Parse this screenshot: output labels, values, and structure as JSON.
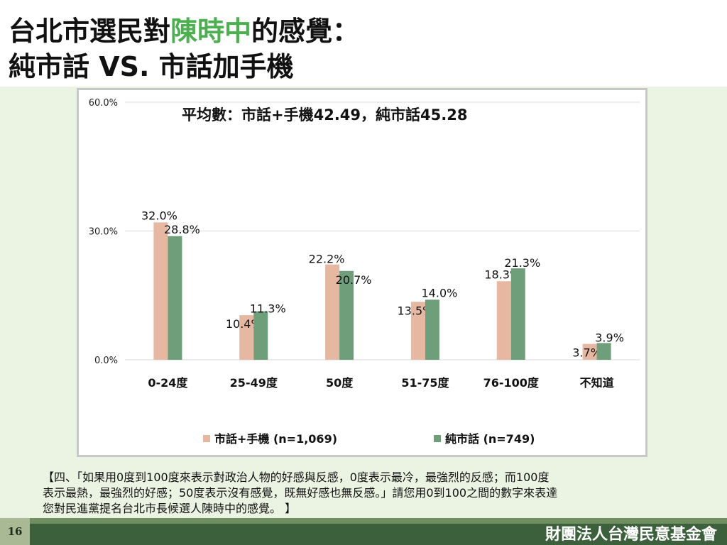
{
  "title": {
    "line1_prefix": "台北市選民對",
    "line1_highlight": "陳時中",
    "line1_suffix": "的感覺：",
    "line2": "純市話 VS. 市話加手機"
  },
  "colors": {
    "highlight": "#4caf50",
    "series1": "#e6b8a2",
    "series2": "#6e9e7a",
    "background": "#ebf3e3",
    "footer": "#3c5f3c"
  },
  "chart_data": {
    "type": "bar",
    "annotation": "平均數：市話+手機42.49，純市話45.28",
    "categories": [
      "0-24度",
      "25-49度",
      "50度",
      "51-75度",
      "76-100度",
      "不知道"
    ],
    "series": [
      {
        "name": "市話+手機 (n=1,069)",
        "values": [
          32.0,
          10.4,
          22.2,
          13.5,
          18.3,
          3.7
        ],
        "labels": [
          "32.0%",
          "10.4%",
          "22.2%",
          "13.5%",
          "18.3%",
          "3.7%"
        ]
      },
      {
        "name": "純市話 (n=749)",
        "values": [
          28.8,
          11.3,
          20.7,
          14.0,
          21.3,
          3.9
        ],
        "labels": [
          "28.8%",
          "11.3%",
          "20.7%",
          "14.0%",
          "21.3%",
          "3.9%"
        ]
      }
    ],
    "ylim": [
      0,
      60
    ],
    "yticks": [
      0,
      30,
      60
    ],
    "ytick_labels": [
      "0.0%",
      "30.0%",
      "60.0%"
    ],
    "grid": true,
    "legend": "bottom"
  },
  "footnote": {
    "line1": "【四、「如果用0度到100度來表示對政治人物的好感與反感，0度表示最冷，最強烈的反感；而100度",
    "line2": "表示最熱，最強烈的好感；50度表示沒有感覺，既無好感也無反感。」請您用0到100之間的數字來表達",
    "line3": "您對民進黨提名台北市長候選人陳時中的感覺。 】"
  },
  "footer": {
    "page_number": "16",
    "org": "財團法人台灣民意基金會"
  }
}
